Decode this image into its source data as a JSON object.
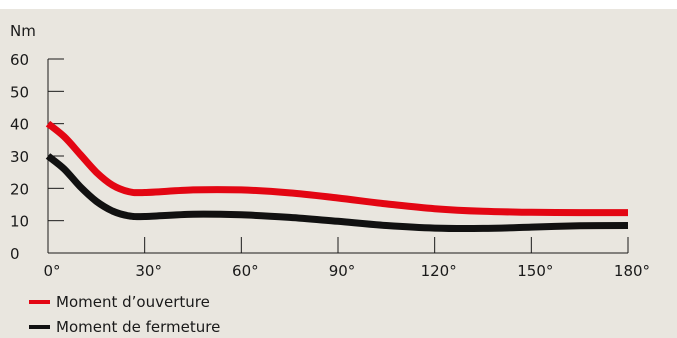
{
  "chart_data": {
    "type": "line",
    "ylabel": "Nm",
    "xlabel": "",
    "x": [
      0,
      5,
      10,
      15,
      20,
      25,
      30,
      45,
      60,
      75,
      90,
      105,
      120,
      135,
      150,
      165,
      180
    ],
    "xlim": [
      0,
      180
    ],
    "ylim": [
      0,
      60
    ],
    "xticks": [
      0,
      30,
      60,
      90,
      120,
      150,
      180
    ],
    "xtick_labels": [
      "0°",
      "30°",
      "60°",
      "90°",
      "120°",
      "150°",
      "180°"
    ],
    "yticks": [
      0,
      10,
      20,
      30,
      40,
      50,
      60
    ],
    "ytick_labels": [
      "0",
      "10",
      "20",
      "30",
      "40",
      "50",
      "60"
    ],
    "grid": false,
    "legend_position": "bottom-left",
    "series": [
      {
        "name": "Moment d’ouverture",
        "color": "#e30613",
        "values": [
          40,
          36,
          30.5,
          25,
          21,
          19,
          18.7,
          19.5,
          19.5,
          18.6,
          17,
          15.2,
          13.7,
          12.9,
          12.6,
          12.5,
          12.5
        ]
      },
      {
        "name": "Moment de fermeture",
        "color": "#111111",
        "values": [
          30,
          26,
          20.5,
          16,
          13,
          11.5,
          11.3,
          12,
          11.8,
          11,
          9.8,
          8.5,
          7.7,
          7.6,
          8,
          8.4,
          8.5
        ]
      }
    ]
  }
}
